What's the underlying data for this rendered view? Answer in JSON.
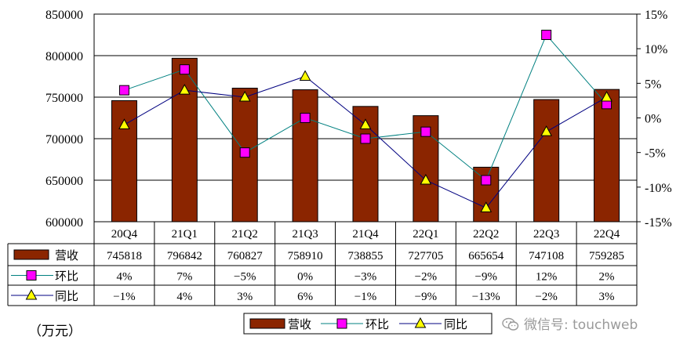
{
  "chart_data": {
    "type": "bar",
    "categories": [
      "20Q4",
      "21Q1",
      "21Q2",
      "21Q3",
      "21Q4",
      "22Q1",
      "22Q2",
      "22Q3",
      "22Q4"
    ],
    "series": [
      {
        "name": "营收",
        "kind": "bar",
        "axis": "left",
        "values": [
          745818,
          796842,
          760827,
          758910,
          738855,
          727705,
          665654,
          747108,
          759285
        ],
        "labels": [
          "745818",
          "796842",
          "760827",
          "758910",
          "738855",
          "727705",
          "665654",
          "747108",
          "759285"
        ],
        "color": "#8B2500"
      },
      {
        "name": "环比",
        "kind": "line",
        "axis": "right",
        "marker": "square",
        "values": [
          4,
          7,
          -5,
          0,
          -3,
          -2,
          -9,
          12,
          2
        ],
        "labels": [
          "4%",
          "7%",
          "−5%",
          "0%",
          "−3%",
          "−2%",
          "−9%",
          "12%",
          "2%"
        ],
        "color": "#FF00FF",
        "line_color": "#008080"
      },
      {
        "name": "同比",
        "kind": "line",
        "axis": "right",
        "marker": "triangle",
        "values": [
          -1,
          4,
          3,
          6,
          -1,
          -9,
          -13,
          -2,
          3
        ],
        "labels": [
          "−1%",
          "4%",
          "3%",
          "6%",
          "−1%",
          "−9%",
          "−13%",
          "−2%",
          "3%"
        ],
        "color": "#FFFF00",
        "line_color": "#000080"
      }
    ],
    "y_left": {
      "ylim": [
        600000,
        850000
      ],
      "ticks": [
        "850000",
        "800000",
        "750000",
        "700000",
        "650000",
        "600000"
      ]
    },
    "y_right": {
      "ylim": [
        -15,
        15
      ],
      "ticks": [
        "15%",
        "10%",
        "5%",
        "0%",
        "-5%",
        "-10%",
        "-15%"
      ]
    },
    "grid": true,
    "data_table": true,
    "legend": "bottom-center"
  },
  "unit_label": "（万元）",
  "watermark": "微信号: touchweb"
}
